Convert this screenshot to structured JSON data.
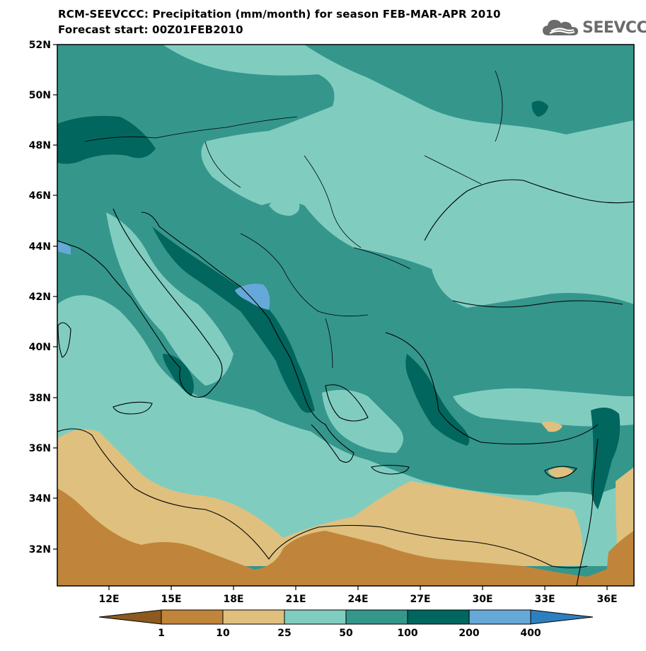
{
  "header": {
    "title": "RCM-SEEVCCC: Precipitation (mm/month) for season FEB-MAR-APR 2010",
    "subtitle": "Forecast start: 00Z01FEB2010"
  },
  "logo": {
    "text": "SEEVCCC",
    "icon": "cloud-icon"
  },
  "map": {
    "lat_labels": [
      "52N",
      "50N",
      "48N",
      "46N",
      "44N",
      "42N",
      "40N",
      "38N",
      "36N",
      "34N",
      "32N"
    ],
    "lon_labels": [
      "12E",
      "15E",
      "18E",
      "21E",
      "24E",
      "27E",
      "30E",
      "33E",
      "36E"
    ]
  },
  "colorbar": {
    "thresholds": [
      "1",
      "10",
      "25",
      "50",
      "100",
      "200",
      "400"
    ],
    "colors": [
      "#8c5a1e",
      "#c0853a",
      "#dfc07e",
      "#80cdc0",
      "#35968c",
      "#01665e",
      "#66a9d8",
      "#2e7fc0"
    ]
  },
  "colors": {
    "cls_25_50": "#80cdc0",
    "cls_50_100": "#35968c",
    "cls_100_200": "#01665e",
    "cls_200_400": "#66a9d8",
    "cls_10_25": "#dfc07e",
    "cls_1_10": "#c0853a"
  }
}
